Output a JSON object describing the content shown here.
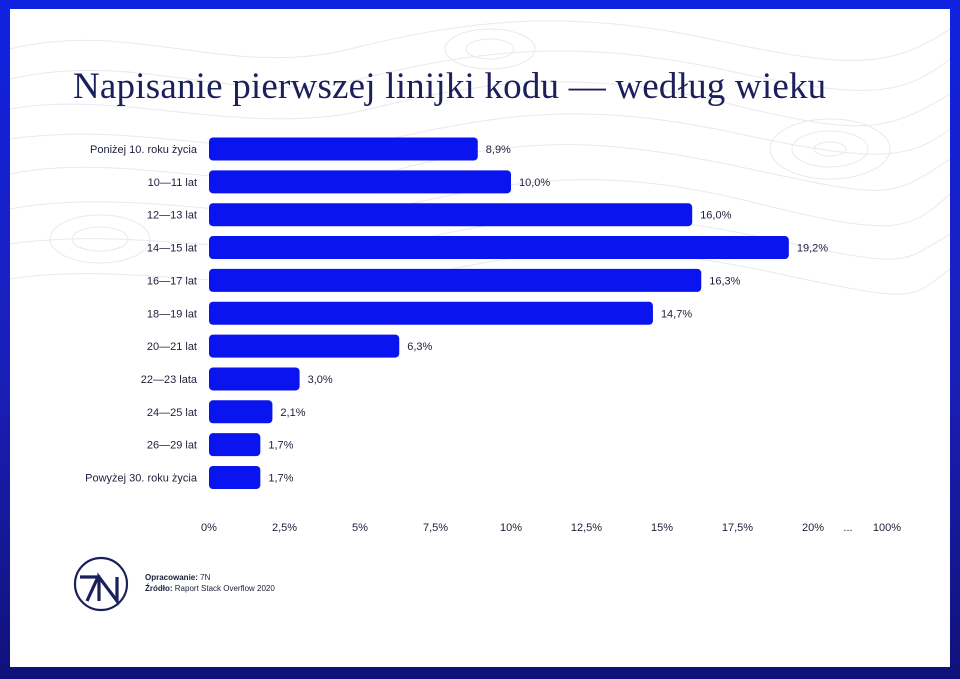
{
  "title": "Napisanie pierwszej linijki kodu — według wieku",
  "colors": {
    "bar": "#0a14ee",
    "frame": "#1a1fb8",
    "title": "#1b1f5a"
  },
  "chart_data": {
    "type": "bar",
    "orientation": "horizontal",
    "title": "Napisanie pierwszej linijki kodu — według wieku",
    "categories": [
      "Poniżej 10. roku życia",
      "10—11 lat",
      "12—13 lat",
      "14—15 lat",
      "16—17 lat",
      "18—19 lat",
      "20—21 lat",
      "22—23 lata",
      "24—25 lat",
      "26—29 lat",
      "Powyżej 30. roku życia"
    ],
    "values": [
      8.9,
      10.0,
      16.0,
      19.2,
      16.3,
      14.7,
      6.3,
      3.0,
      2.1,
      1.7,
      1.7
    ],
    "value_labels": [
      "8,9%",
      "10,0%",
      "16,0%",
      "19,2%",
      "16,3%",
      "14,7%",
      "6,3%",
      "3,0%",
      "2,1%",
      "1,7%",
      "1,7%"
    ],
    "x_ticks": [
      0,
      2.5,
      5,
      7.5,
      10,
      12.5,
      15,
      17.5,
      20
    ],
    "x_tick_labels": [
      "0%",
      "2,5%",
      "5%",
      "7,5%",
      "10%",
      "12,5%",
      "15%",
      "17,5%",
      "20%",
      "...",
      "100%"
    ],
    "xlim": [
      0,
      22.5
    ],
    "axis_break": "after 20% (… then 100%)",
    "grid": false,
    "legend": "none"
  },
  "logo": {
    "text": "7N"
  },
  "credits": {
    "prepared_label": "Opracowanie:",
    "prepared_value": "7N",
    "source_label": "Źródło:",
    "source_value": "Raport Stack Overflow 2020"
  }
}
